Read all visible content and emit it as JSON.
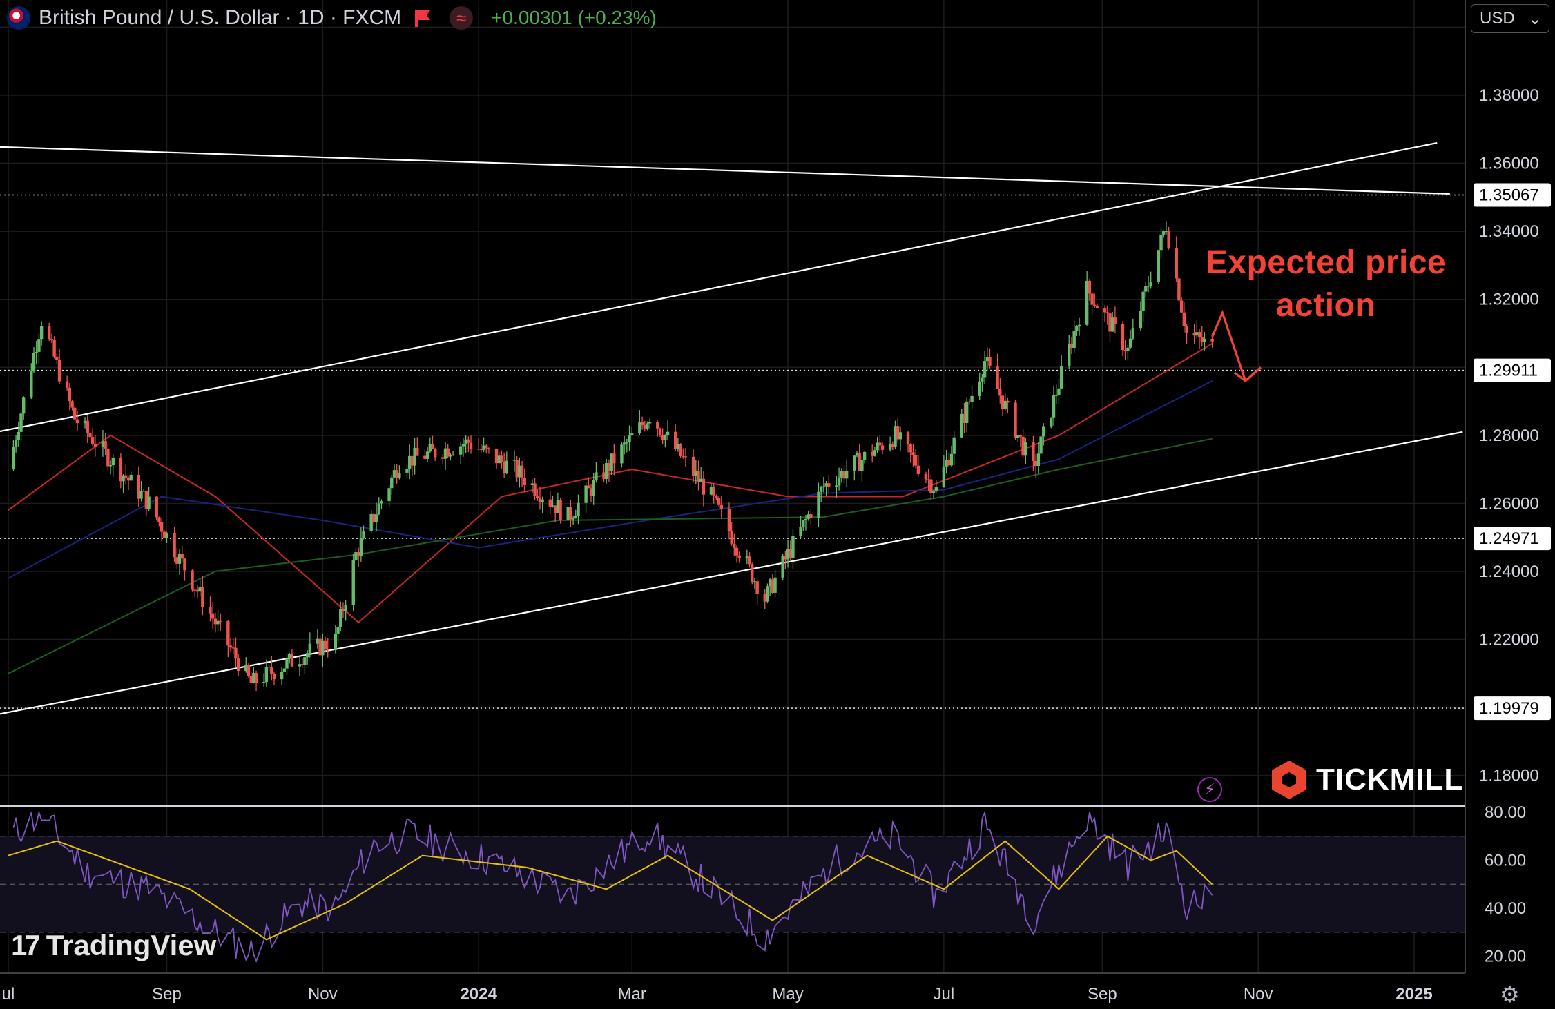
{
  "header": {
    "symbol_title": "British Pound / U.S. Dollar · 1D · FXCM",
    "change": "+0.00301 (+0.23%)",
    "flag_icon": "uk-flag-icon",
    "alert_icon": "flag-marker-icon",
    "indicator_icon": "wave-icon"
  },
  "currency_selector": {
    "value": "USD",
    "icon": "chevron-down-icon"
  },
  "annotation": {
    "line1": "Expected price",
    "line2": "action",
    "color": "#f44336"
  },
  "branding": {
    "tickmill": "TICKMILL",
    "tradingview": "TradingView",
    "tv_logo": "17"
  },
  "colors": {
    "up": "#66bb6a",
    "down": "#ef5350",
    "ma_fast": "#c62828",
    "ma_mid": "#1a237e",
    "ma_slow": "#1b5e20",
    "rsi": "#7e57c2",
    "rsi_ma": "#e5c100",
    "trendline": "#ffffff"
  },
  "chart_data": [
    {
      "type": "candlestick",
      "instrument": "GBP/USD",
      "timeframe": "1D",
      "x_labels": [
        "ul",
        "Sep",
        "Nov",
        "2024",
        "Mar",
        "May",
        "Jul",
        "Sep",
        "Nov",
        "2025"
      ],
      "x_label_dates": [
        "2023-07-01",
        "2023-09-01",
        "2023-11-01",
        "2024-01-01",
        "2024-03-01",
        "2024-05-01",
        "2024-07-01",
        "2024-09-01",
        "2024-11-01",
        "2025-01-01"
      ],
      "y_ticks": [
        "1.38000",
        "1.36000",
        "1.34000",
        "1.32000",
        "1.28000",
        "1.26000",
        "1.24000",
        "1.22000",
        "1.18000"
      ],
      "ylim": [
        1.171,
        1.408
      ],
      "price_levels": [
        "1.35067",
        "1.29911",
        "1.24971",
        "1.19979"
      ],
      "price_path": [
        [
          "2023-07-01",
          1.27
        ],
        [
          "2023-07-14",
          1.314
        ],
        [
          "2023-07-27",
          1.285
        ],
        [
          "2023-08-25",
          1.26
        ],
        [
          "2023-09-20",
          1.225
        ],
        [
          "2023-10-04",
          1.207
        ],
        [
          "2023-10-23",
          1.215
        ],
        [
          "2023-11-06",
          1.22
        ],
        [
          "2023-11-14",
          1.245
        ],
        [
          "2023-12-01",
          1.272
        ],
        [
          "2023-12-28",
          1.278
        ],
        [
          "2024-01-15",
          1.27
        ],
        [
          "2024-02-05",
          1.256
        ],
        [
          "2024-03-08",
          1.286
        ],
        [
          "2024-04-01",
          1.262
        ],
        [
          "2024-04-22",
          1.232
        ],
        [
          "2024-05-15",
          1.265
        ],
        [
          "2024-06-12",
          1.28
        ],
        [
          "2024-06-28",
          1.264
        ],
        [
          "2024-07-17",
          1.302
        ],
        [
          "2024-08-05",
          1.27
        ],
        [
          "2024-08-26",
          1.323
        ],
        [
          "2024-09-11",
          1.305
        ],
        [
          "2024-09-26",
          1.342
        ],
        [
          "2024-10-04",
          1.31
        ],
        [
          "2024-10-14",
          1.306
        ]
      ],
      "moving_averages": [
        {
          "points": [
            [
              "2023-07-01",
              1.258
            ],
            [
              "2023-08-10",
              1.28
            ],
            [
              "2023-09-20",
              1.262
            ],
            [
              "2023-11-15",
              1.225
            ],
            [
              "2024-01-10",
              1.262
            ],
            [
              "2024-03-01",
              1.27
            ],
            [
              "2024-05-01",
              1.262
            ],
            [
              "2024-06-15",
              1.262
            ],
            [
              "2024-08-15",
              1.28
            ],
            [
              "2024-10-14",
              1.307
            ]
          ]
        },
        {
          "points": [
            [
              "2023-07-01",
              1.238
            ],
            [
              "2023-08-30",
              1.262
            ],
            [
              "2023-11-01",
              1.255
            ],
            [
              "2024-01-01",
              1.247
            ],
            [
              "2024-03-15",
              1.256
            ],
            [
              "2024-05-15",
              1.263
            ],
            [
              "2024-07-01",
              1.264
            ],
            [
              "2024-08-15",
              1.273
            ],
            [
              "2024-10-14",
              1.296
            ]
          ]
        },
        {
          "points": [
            [
              "2023-07-01",
              1.21
            ],
            [
              "2023-09-20",
              1.24
            ],
            [
              "2023-11-15",
              1.245
            ],
            [
              "2024-02-01",
              1.255
            ],
            [
              "2024-05-15",
              1.256
            ],
            [
              "2024-07-01",
              1.262
            ],
            [
              "2024-08-15",
              1.27
            ],
            [
              "2024-10-14",
              1.279
            ]
          ]
        }
      ],
      "trendlines": [
        {
          "from": [
            "2023-06-20",
            1.365
          ],
          "to": [
            "2025-01-15",
            1.351
          ]
        },
        {
          "from": [
            "2023-06-20",
            1.28
          ],
          "to": [
            "2025-01-10",
            1.366
          ]
        },
        {
          "from": [
            "2023-06-20",
            1.197
          ],
          "to": [
            "2025-01-20",
            1.281
          ]
        }
      ],
      "projection": [
        [
          "2024-10-14",
          1.309
        ],
        [
          "2024-10-18",
          1.316
        ],
        [
          "2024-10-27",
          1.296
        ],
        [
          "2024-11-02",
          1.3
        ]
      ]
    },
    {
      "type": "line",
      "indicator": "RSI",
      "y_ticks": [
        "80.00",
        "60.00",
        "40.00",
        "20.00"
      ],
      "ylim": [
        13,
        82
      ],
      "bands": [
        30,
        50,
        70
      ],
      "rsi_path": [
        [
          "2023-07-01",
          70
        ],
        [
          "2023-07-14",
          79
        ],
        [
          "2023-08-01",
          55
        ],
        [
          "2023-08-25",
          48
        ],
        [
          "2023-09-20",
          30
        ],
        [
          "2023-10-04",
          22
        ],
        [
          "2023-10-23",
          42
        ],
        [
          "2023-11-06",
          40
        ],
        [
          "2023-11-20",
          66
        ],
        [
          "2023-12-05",
          71
        ],
        [
          "2024-01-05",
          60
        ],
        [
          "2024-02-05",
          45
        ],
        [
          "2024-03-08",
          72
        ],
        [
          "2024-04-01",
          48
        ],
        [
          "2024-04-22",
          28
        ],
        [
          "2024-05-20",
          60
        ],
        [
          "2024-06-12",
          70
        ],
        [
          "2024-06-28",
          45
        ],
        [
          "2024-07-17",
          75
        ],
        [
          "2024-08-05",
          36
        ],
        [
          "2024-08-26",
          78
        ],
        [
          "2024-09-11",
          58
        ],
        [
          "2024-09-26",
          72
        ],
        [
          "2024-10-04",
          42
        ],
        [
          "2024-10-14",
          44
        ]
      ],
      "rsi_ma_path": [
        [
          "2023-07-01",
          62
        ],
        [
          "2023-07-20",
          68
        ],
        [
          "2023-09-10",
          48
        ],
        [
          "2023-10-10",
          27
        ],
        [
          "2023-11-10",
          42
        ],
        [
          "2023-12-10",
          62
        ],
        [
          "2024-01-20",
          57
        ],
        [
          "2024-02-20",
          48
        ],
        [
          "2024-03-15",
          62
        ],
        [
          "2024-04-25",
          35
        ],
        [
          "2024-06-01",
          62
        ],
        [
          "2024-07-01",
          48
        ],
        [
          "2024-07-25",
          68
        ],
        [
          "2024-08-15",
          48
        ],
        [
          "2024-09-03",
          70
        ],
        [
          "2024-09-20",
          60
        ],
        [
          "2024-09-30",
          64
        ],
        [
          "2024-10-14",
          50
        ]
      ]
    }
  ]
}
